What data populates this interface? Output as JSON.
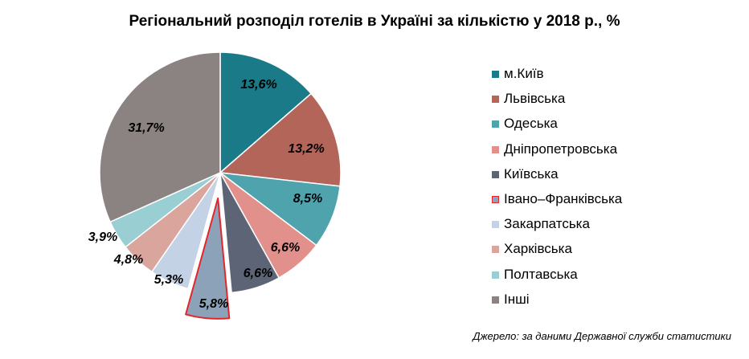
{
  "chart_data": {
    "type": "pie",
    "title": "Регіональний розподіл готелів в Україні за кількістю у 2018 р., %",
    "slices": [
      {
        "label": "м.Київ",
        "value": 13.6,
        "display": "13,6%",
        "color": "#1b7a87"
      },
      {
        "label": "Львівська",
        "value": 13.2,
        "display": "13,2%",
        "color": "#b4655a"
      },
      {
        "label": "Одеська",
        "value": 8.5,
        "display": "8,5%",
        "color": "#4fa3ad"
      },
      {
        "label": "Дніпропетровська",
        "value": 6.6,
        "display": "6,6%",
        "color": "#e2908c"
      },
      {
        "label": "Київська",
        "value": 6.6,
        "display": "6,6%",
        "color": "#5d6475"
      },
      {
        "label": "Івано–Франківська",
        "value": 5.8,
        "display": "5,8%",
        "color": "#8ba2b9",
        "highlighted": true,
        "exploded": true
      },
      {
        "label": "Закарпатська",
        "value": 5.3,
        "display": "5,3%",
        "color": "#c3d2e5"
      },
      {
        "label": "Харківська",
        "value": 4.8,
        "display": "4,8%",
        "color": "#d9a59d"
      },
      {
        "label": "Полтавська",
        "value": 3.9,
        "display": "3,9%",
        "color": "#99cfd2"
      },
      {
        "label": "Інші",
        "value": 31.7,
        "display": "31,7%",
        "color": "#8b8382"
      }
    ],
    "legend_position": "right",
    "highlight_color": "#e3262c"
  },
  "source": "Джерело: за даними Державної служби статистики"
}
